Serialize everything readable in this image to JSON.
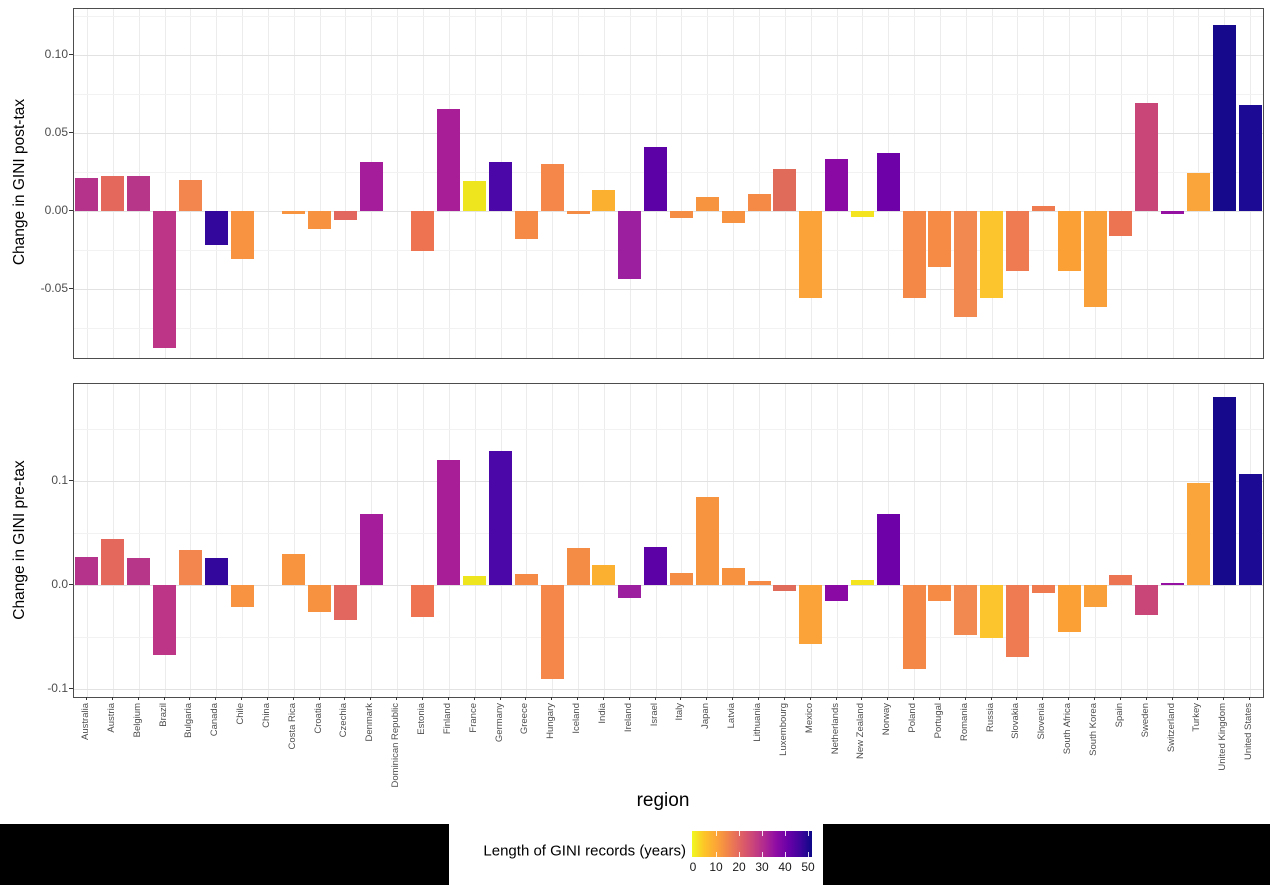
{
  "figure": {
    "xlabel": "region",
    "background_color": "#ffffff",
    "strip_color": "#000000",
    "panel_border_color": "#4d4d4d"
  },
  "panels": [
    {
      "ylabel": "Change in GINI post-tax",
      "ytick_labels": [
        "0.10",
        "0.05",
        "0.00",
        "-0.05"
      ],
      "ytick_values": [
        0.1,
        0.05,
        0.0,
        -0.05
      ],
      "minor_values": [
        0.125,
        0.075,
        0.025,
        -0.025,
        -0.075
      ],
      "ylim": [
        -0.0944,
        0.1293
      ]
    },
    {
      "ylabel": "Change in GINI pre-tax",
      "ytick_labels": [
        "0.1",
        "0.0",
        "-0.1"
      ],
      "ytick_values": [
        0.1,
        0.0,
        -0.1
      ],
      "minor_values": [
        0.15,
        0.05,
        -0.05
      ],
      "ylim": [
        -0.1077,
        0.1933
      ]
    }
  ],
  "chart_data": {
    "type": "bar",
    "xlabel": "region",
    "grid": true,
    "legend_position": "bottom",
    "facets": [
      "Change in GINI post-tax",
      "Change in GINI pre-tax"
    ],
    "categories": [
      "Australia",
      "Austria",
      "Belgium",
      "Brazil",
      "Bulgaria",
      "Canada",
      "Chile",
      "China",
      "Costa Rica",
      "Croatia",
      "Czechia",
      "Denmark",
      "Dominican Republic",
      "Estonia",
      "Finland",
      "France",
      "Germany",
      "Greece",
      "Hungary",
      "Iceland",
      "India",
      "Ireland",
      "Israel",
      "Italy",
      "Japan",
      "Latvia",
      "Lithuania",
      "Luxembourg",
      "Mexico",
      "Netherlands",
      "New Zealand",
      "Norway",
      "Poland",
      "Portugal",
      "Romania",
      "Russia",
      "Slovakia",
      "Slovenia",
      "South Africa",
      "South Korea",
      "Spain",
      "Sweden",
      "Switzerland",
      "Turkey",
      "United Kingdom",
      "United States"
    ],
    "series": [
      {
        "name": "Change in GINI post-tax",
        "values": [
          0.021,
          0.022,
          0.022,
          -0.088,
          0.02,
          -0.022,
          -0.031,
          null,
          -0.002,
          -0.012,
          -0.006,
          0.031,
          null,
          -0.026,
          0.065,
          0.019,
          0.031,
          -0.018,
          0.03,
          -0.002,
          0.013,
          -0.044,
          0.041,
          -0.005,
          0.009,
          -0.008,
          0.011,
          0.027,
          -0.056,
          0.033,
          -0.004,
          0.037,
          -0.056,
          -0.036,
          -0.068,
          -0.056,
          -0.039,
          0.003,
          -0.039,
          -0.062,
          -0.016,
          0.069,
          -0.002,
          0.024,
          0.119,
          0.068
        ]
      },
      {
        "name": "Change in GINI pre-tax",
        "values": [
          0.027,
          0.044,
          0.026,
          -0.067,
          0.034,
          0.026,
          -0.021,
          null,
          0.03,
          -0.026,
          -0.034,
          0.068,
          null,
          -0.031,
          0.12,
          0.009,
          0.129,
          0.011,
          -0.09,
          0.036,
          0.019,
          -0.012,
          0.037,
          0.012,
          0.085,
          0.016,
          0.004,
          -0.006,
          -0.057,
          -0.015,
          0.005,
          0.068,
          -0.081,
          -0.015,
          -0.048,
          -0.051,
          -0.069,
          -0.008,
          -0.045,
          -0.021,
          0.01,
          -0.029,
          0.002,
          0.098,
          0.181,
          0.107
        ]
      }
    ],
    "bar_colors": [
      "#b5338a",
      "#e5685c",
      "#b8368a",
      "#bc3587",
      "#f3854e",
      "#33079b",
      "#f89441",
      null,
      "#f8933f",
      "#f79240",
      "#e2685f",
      "#a51d9b",
      null,
      "#ee7350",
      "#a81e97",
      "#efe51e",
      "#4c07a8",
      "#f58a46",
      "#f5874b",
      "#f58c45",
      "#fcb030",
      "#9c1f9f",
      "#5c01a6",
      "#f68d44",
      "#f79440",
      "#f79240",
      "#f58a46",
      "#e16b5a",
      "#fba238",
      "#8a09a5",
      "#f4e41f",
      "#6e01a8",
      "#f48847",
      "#f68b45",
      "#f28950",
      "#fcc52e",
      "#ee7b51",
      "#f07a50",
      "#fba035",
      "#f9a03a",
      "#ed7452",
      "#c94678",
      "#9511a1",
      "#faa43c",
      "#17098c",
      "#1c0994"
    ],
    "color_scale": {
      "label": "Length of GINI records (years)",
      "ticks": [
        0,
        10,
        20,
        30,
        40,
        50
      ],
      "low_color": "#f0f921",
      "high_color": "#0d0887"
    }
  },
  "legend": {
    "title": "Length of GINI records (years)",
    "tick_labels": [
      "0",
      "10",
      "20",
      "30",
      "40",
      "50"
    ],
    "gradient_stops": [
      "#f0f921",
      "#fdc527",
      "#fca636",
      "#f1844b",
      "#e16462",
      "#cc4778",
      "#b12a90",
      "#8f0da4",
      "#6a00a8",
      "#41049d",
      "#0d0887"
    ]
  }
}
